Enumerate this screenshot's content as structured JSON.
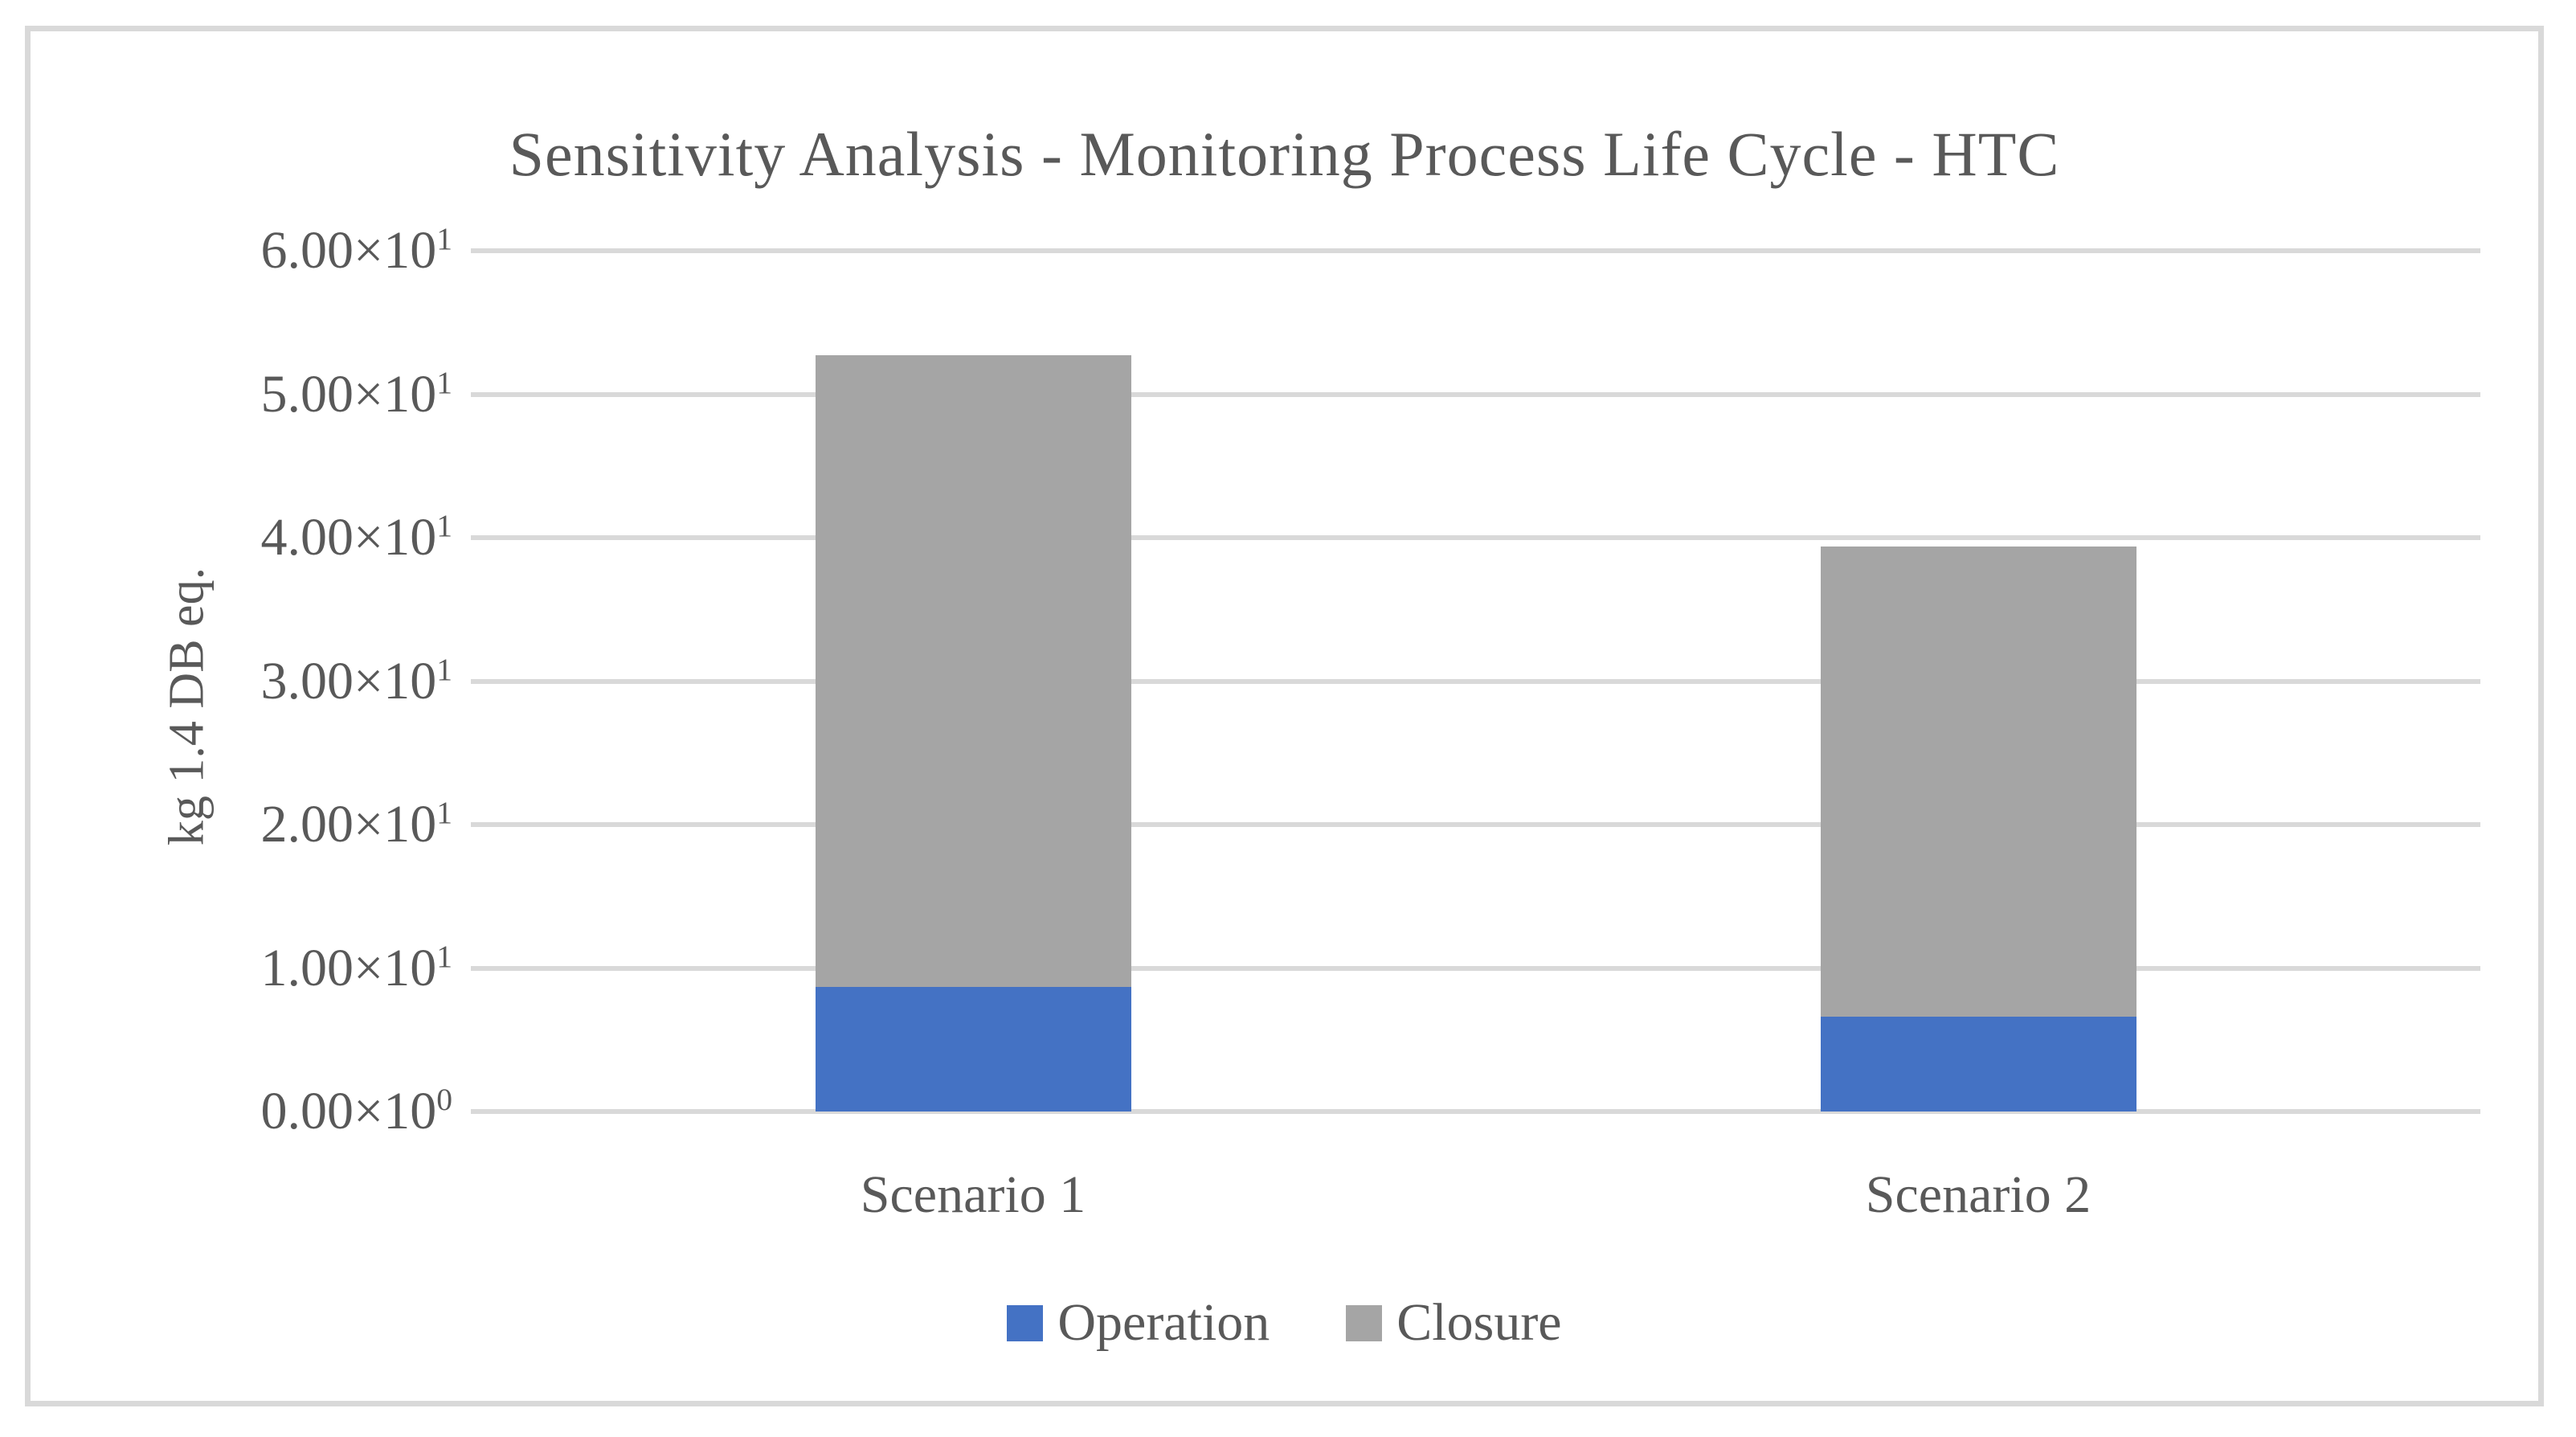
{
  "chart_data": {
    "type": "bar",
    "stacked": true,
    "title": "Sensitivity Analysis - Monitoring Process Life Cycle - HTC",
    "ylabel": "kg 1.4 DB eq.",
    "xlabel": "",
    "categories": [
      "Scenario 1",
      "Scenario 2"
    ],
    "series": [
      {
        "name": "Operation",
        "values": [
          8.7,
          6.6
        ],
        "color": "#4472c4"
      },
      {
        "name": "Closure",
        "values": [
          44.0,
          32.8
        ],
        "color": "#a5a5a5"
      }
    ],
    "totals": [
      52.7,
      39.4
    ],
    "ylim": [
      0,
      60
    ],
    "ytick_step": 10,
    "yticks": [
      {
        "base": "0.00×10",
        "exp": "0"
      },
      {
        "base": "1.00×10",
        "exp": "1"
      },
      {
        "base": "2.00×10",
        "exp": "1"
      },
      {
        "base": "3.00×10",
        "exp": "1"
      },
      {
        "base": "4.00×10",
        "exp": "1"
      },
      {
        "base": "5.00×10",
        "exp": "1"
      },
      {
        "base": "6.00×10",
        "exp": "1"
      }
    ],
    "grid": true,
    "legend_position": "bottom",
    "colors": {
      "text": "#595959",
      "gridline": "#d9d9d9",
      "frame_border": "#d9d9d9",
      "background": "#ffffff"
    }
  }
}
